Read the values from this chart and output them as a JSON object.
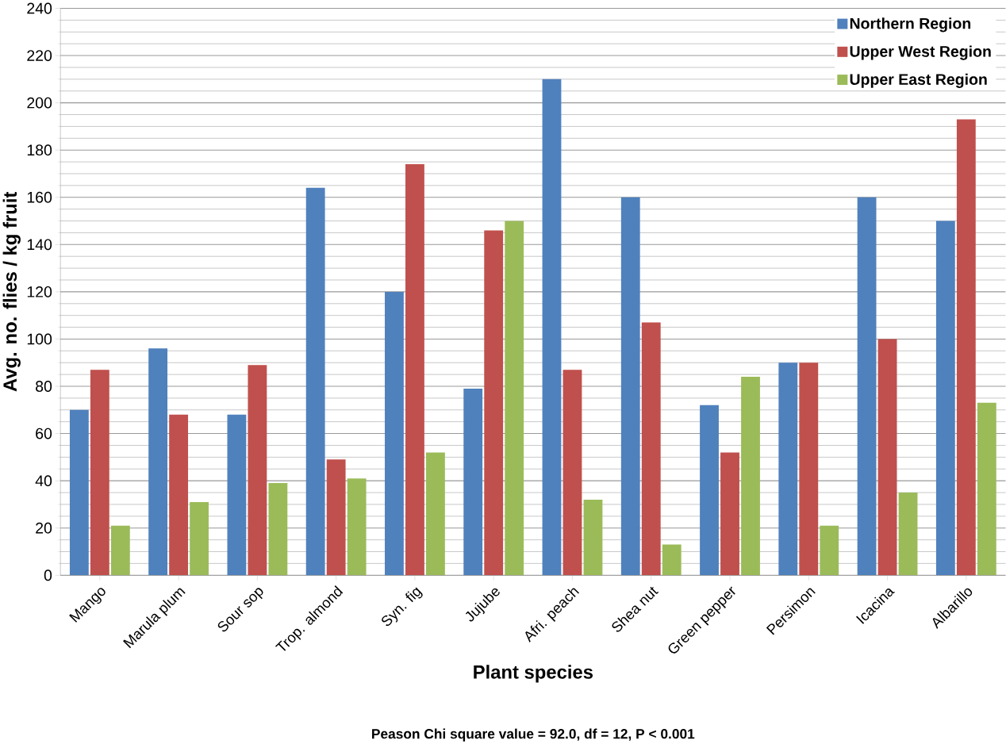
{
  "chart_data": {
    "type": "bar",
    "xlabel": "Plant species",
    "ylabel": "Avg. no. flies / kg fruit",
    "categories": [
      "Mango",
      "Marula plum",
      "Sour sop",
      "Trop. almond",
      "Syn. fig",
      "Jujube",
      "Afri. peach",
      "Shea nut",
      "Green pepper",
      "Persimon",
      "Icacina",
      "Albarillo"
    ],
    "series": [
      {
        "name": "Northern Region",
        "color": "#4f81bd",
        "values": [
          70,
          96,
          68,
          164,
          120,
          79,
          210,
          160,
          72,
          90,
          160,
          150
        ]
      },
      {
        "name": "Upper West Region",
        "color": "#c0504d",
        "values": [
          87,
          68,
          89,
          49,
          174,
          146,
          87,
          107,
          52,
          90,
          100,
          193
        ]
      },
      {
        "name": "Upper East Region",
        "color": "#9bbb59",
        "values": [
          21,
          31,
          39,
          41,
          52,
          150,
          32,
          13,
          84,
          21,
          35,
          73
        ]
      }
    ],
    "ylim": [
      0,
      240
    ],
    "yticks": [
      0,
      20,
      40,
      60,
      80,
      100,
      120,
      140,
      160,
      180,
      200,
      220,
      240
    ],
    "grid": "y",
    "legend": "top right",
    "annotations": [
      "Peason Chi square value = 92.0, df = 12, P < 0.001"
    ]
  }
}
